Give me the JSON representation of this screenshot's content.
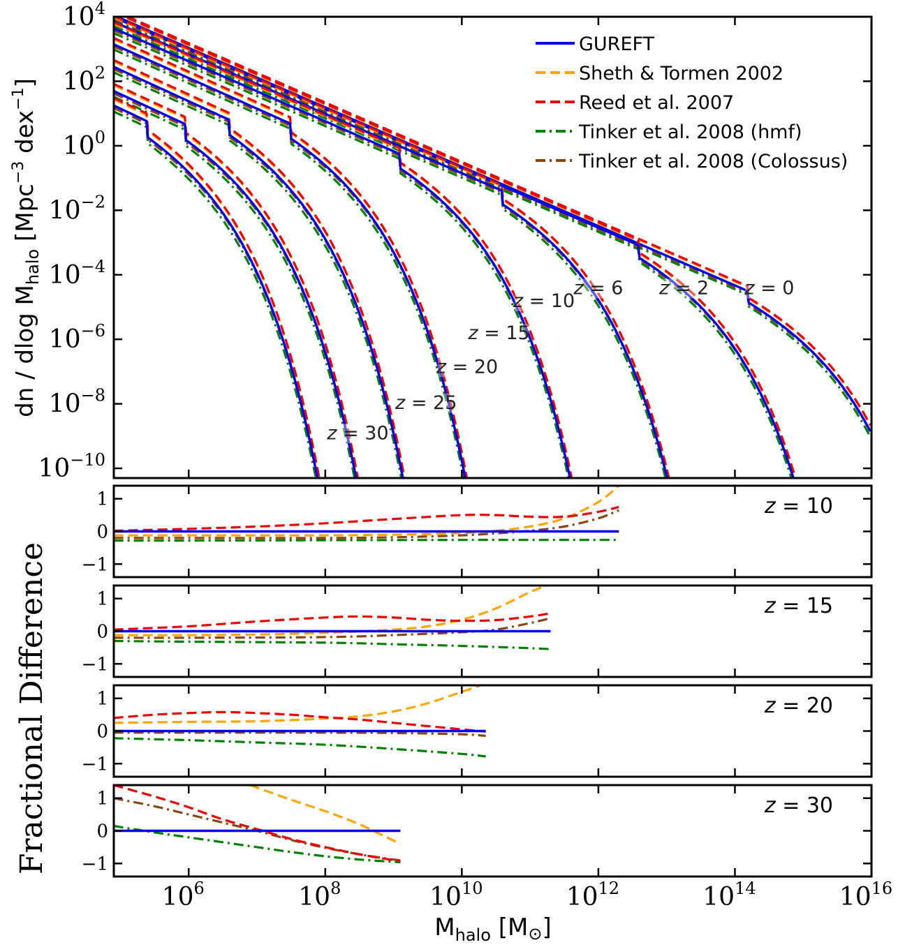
{
  "chart_data": [
    {
      "panel": "main",
      "type": "line",
      "xscale": "log",
      "yscale": "log",
      "xlim": [
        80000,
        1e+16
      ],
      "ylim": [
        5e-11,
        10000
      ],
      "xlabel": "M_halo [M_sun]",
      "xlabel_main": "M",
      "xlabel_sub": "halo",
      "xlabel_unit": "[M",
      "xlabel_unit_sub": "⊙",
      "xlabel_close": "]",
      "ylabel_prefix": "dn / dlog M",
      "ylabel_sub": "halo",
      "ylabel_suffix_a": " [Mpc",
      "ylabel_sup": "−3",
      "ylabel_suffix_b": " dex",
      "ylabel_sup2": "−1",
      "ylabel_close": "]",
      "x_ticks": [
        {
          "base": "10",
          "exp": "6",
          "value": 1000000.0
        },
        {
          "base": "10",
          "exp": "8",
          "value": 100000000.0
        },
        {
          "base": "10",
          "exp": "10",
          "value": 10000000000.0
        },
        {
          "base": "10",
          "exp": "12",
          "value": 1000000000000.0
        },
        {
          "base": "10",
          "exp": "14",
          "value": 100000000000000.0
        },
        {
          "base": "10",
          "exp": "16",
          "value": 1e+16
        }
      ],
      "y_ticks": [
        {
          "base": "10",
          "exp": "4",
          "value": 10000.0
        },
        {
          "base": "10",
          "exp": "2",
          "value": 100.0
        },
        {
          "base": "10",
          "exp": "0",
          "value": 1
        },
        {
          "base": "10",
          "exp": "−2",
          "value": 0.01
        },
        {
          "base": "10",
          "exp": "−4",
          "value": 0.0001
        },
        {
          "base": "10",
          "exp": "−6",
          "value": 1e-06
        },
        {
          "base": "10",
          "exp": "−8",
          "value": 1e-08
        },
        {
          "base": "10",
          "exp": "−10",
          "value": 1e-10
        }
      ],
      "legend": {
        "placement": "top-right",
        "entries": [
          {
            "label": "GUREFT",
            "color": "#0000ee",
            "style": "solid"
          },
          {
            "label": "Sheth & Tormen 2002",
            "color": "#ffa500",
            "style": "dashed"
          },
          {
            "label": "Reed et al. 2007",
            "color": "#ee0000",
            "style": "dashed"
          },
          {
            "label": "Tinker et al. 2008 (hmf)",
            "color": "#008000",
            "style": "dashdot"
          },
          {
            "label": "Tinker et al. 2008 (Colossus)",
            "color": "#8b4513",
            "style": "dashdot"
          }
        ]
      },
      "redshift_curves": [
        {
          "z": 0,
          "label": "z = 0",
          "label_at": [
            320000000000000.0,
            2.5e-05
          ],
          "logn_at_1e5": 3.95,
          "slope": -0.92,
          "log_mcut": 14.2,
          "curv": 1.45,
          "mend": 1e+16
        },
        {
          "z": 2,
          "label": "z = 2",
          "label_at": [
            18000000000000.0,
            2.5e-05
          ],
          "logn_at_1e5": 3.9,
          "slope": -0.92,
          "log_mcut": 12.6,
          "curv": 1.6,
          "mend": 1e+16
        },
        {
          "z": 6,
          "label": "z = 6",
          "label_at": [
            1000000000000.0,
            2.5e-05
          ],
          "logn_at_1e5": 3.75,
          "slope": -0.92,
          "log_mcut": 10.6,
          "curv": 1.75,
          "mend": 1e+16
        },
        {
          "z": 10,
          "label": "z = 10",
          "label_at": [
            160000000000.0,
            1e-05
          ],
          "logn_at_1e5": 3.55,
          "slope": -0.93,
          "log_mcut": 9.1,
          "curv": 1.85,
          "mend": 1e+16
        },
        {
          "z": 15,
          "label": "z = 15",
          "label_at": [
            35000000000.0,
            1e-06
          ],
          "logn_at_1e5": 3.05,
          "slope": -0.95,
          "log_mcut": 7.5,
          "curv": 1.9,
          "mend": 1e+16
        },
        {
          "z": 20,
          "label": "z = 20",
          "label_at": [
            12000000000.0,
            9e-08
          ],
          "logn_at_1e5": 2.35,
          "slope": -0.97,
          "log_mcut": 6.6,
          "curv": 1.95,
          "mend": 1e+16
        },
        {
          "z": 25,
          "label": "z = 25",
          "label_at": [
            3000000000.0,
            7e-09
          ],
          "logn_at_1e5": 1.6,
          "slope": -0.98,
          "log_mcut": 5.95,
          "curv": 2.0,
          "mend": 1e+16
        },
        {
          "z": 30,
          "label": "z = 30",
          "label_at": [
            300000000.0,
            8e-10
          ],
          "logn_at_1e5": 1.15,
          "slope": -1.0,
          "log_mcut": 5.4,
          "curv": 2.05,
          "mend": 1e+16
        }
      ],
      "model_offsets_dex": {
        "GUREFT": 0,
        "Sheth & Tormen 2002": 0.12,
        "Reed et al. 2007": 0.15,
        "Tinker et al. 2008 (hmf)": -0.12,
        "Tinker et al. 2008 (Colossus)": -0.05
      }
    },
    {
      "panel": "frac-z10",
      "type": "line",
      "xscale": "log",
      "xlim": [
        80000,
        1e+16
      ],
      "ylim": [
        -1.4,
        1.4
      ],
      "label": "z = 10",
      "y_ticks": [
        "1",
        "0",
        "−1"
      ],
      "y_tick_values": [
        1,
        0,
        -1
      ],
      "series": [
        {
          "name": "GUREFT",
          "x_log": [
            4.9,
            12.3
          ],
          "y": [
            0,
            0
          ]
        },
        {
          "name": "Sheth & Tormen 2002",
          "x_log": [
            4.9,
            6,
            7,
            8,
            9,
            10,
            10.5,
            11,
            11.5,
            12,
            12.3
          ],
          "y": [
            -0.12,
            -0.12,
            -0.12,
            -0.12,
            -0.1,
            -0.05,
            0.02,
            0.15,
            0.4,
            0.9,
            1.4
          ]
        },
        {
          "name": "Reed et al. 2007",
          "x_log": [
            4.9,
            6,
            7,
            8,
            9,
            10,
            10.5,
            11,
            11.5,
            12,
            12.3
          ],
          "y": [
            0.02,
            0.08,
            0.15,
            0.25,
            0.38,
            0.5,
            0.5,
            0.45,
            0.45,
            0.6,
            0.75
          ]
        },
        {
          "name": "Tinker et al. 2008 (hmf)",
          "x_log": [
            4.9,
            6,
            8,
            10,
            11,
            12,
            12.3
          ],
          "y": [
            -0.28,
            -0.28,
            -0.27,
            -0.26,
            -0.26,
            -0.26,
            -0.26
          ]
        },
        {
          "name": "Tinker et al. 2008 (Colossus)",
          "x_log": [
            4.9,
            6,
            8,
            9,
            10,
            10.5,
            11,
            11.5,
            12,
            12.3
          ],
          "y": [
            -0.2,
            -0.2,
            -0.2,
            -0.18,
            -0.12,
            -0.06,
            0.02,
            0.15,
            0.4,
            0.65
          ]
        }
      ]
    },
    {
      "panel": "frac-z15",
      "type": "line",
      "xscale": "log",
      "xlim": [
        80000,
        1e+16
      ],
      "ylim": [
        -1.4,
        1.4
      ],
      "label": "z = 15",
      "y_ticks": [
        "1",
        "0",
        "−1"
      ],
      "y_tick_values": [
        1,
        0,
        -1
      ],
      "series": [
        {
          "name": "GUREFT",
          "x_log": [
            4.9,
            11.3
          ],
          "y": [
            0,
            0
          ]
        },
        {
          "name": "Sheth & Tormen 2002",
          "x_log": [
            4.9,
            6,
            7,
            8,
            9,
            9.5,
            10,
            10.5,
            11,
            11.3
          ],
          "y": [
            -0.12,
            -0.12,
            -0.1,
            -0.05,
            0.05,
            0.15,
            0.35,
            0.7,
            1.2,
            1.45
          ]
        },
        {
          "name": "Reed et al. 2007",
          "x_log": [
            4.9,
            6,
            7,
            8,
            8.5,
            9,
            9.5,
            10,
            10.5,
            11,
            11.3
          ],
          "y": [
            0.05,
            0.15,
            0.3,
            0.42,
            0.45,
            0.42,
            0.35,
            0.32,
            0.34,
            0.45,
            0.55
          ]
        },
        {
          "name": "Tinker et al. 2008 (hmf)",
          "x_log": [
            4.9,
            6,
            8,
            9,
            10,
            11,
            11.3
          ],
          "y": [
            -0.3,
            -0.32,
            -0.35,
            -0.4,
            -0.45,
            -0.52,
            -0.55
          ]
        },
        {
          "name": "Tinker et al. 2008 (Colossus)",
          "x_log": [
            4.9,
            6,
            8,
            9,
            10,
            10.5,
            11,
            11.3
          ],
          "y": [
            -0.2,
            -0.2,
            -0.18,
            -0.12,
            -0.03,
            0.05,
            0.25,
            0.4
          ]
        }
      ]
    },
    {
      "panel": "frac-z20",
      "type": "line",
      "xscale": "log",
      "xlim": [
        80000,
        1e+16
      ],
      "ylim": [
        -1.4,
        1.4
      ],
      "label": "z = 20",
      "y_ticks": [
        "1",
        "0",
        "−1"
      ],
      "y_tick_values": [
        1,
        0,
        -1
      ],
      "series": [
        {
          "name": "GUREFT",
          "x_log": [
            4.9,
            10.35
          ],
          "y": [
            0,
            0
          ]
        },
        {
          "name": "Sheth & Tormen 2002",
          "x_log": [
            4.9,
            6,
            7,
            8,
            8.5,
            9,
            9.5,
            10,
            10.35
          ],
          "y": [
            0.25,
            0.28,
            0.3,
            0.38,
            0.45,
            0.6,
            0.85,
            1.2,
            1.45
          ]
        },
        {
          "name": "Reed et al. 2007",
          "x_log": [
            4.9,
            5.5,
            6,
            6.5,
            7,
            7.5,
            8,
            8.5,
            9,
            9.5,
            10,
            10.35
          ],
          "y": [
            0.4,
            0.5,
            0.55,
            0.58,
            0.55,
            0.5,
            0.42,
            0.35,
            0.25,
            0.15,
            0.05,
            -0.02
          ]
        },
        {
          "name": "Tinker et al. 2008 (hmf)",
          "x_log": [
            4.9,
            6,
            7,
            8,
            9,
            10,
            10.35
          ],
          "y": [
            -0.22,
            -0.28,
            -0.35,
            -0.42,
            -0.55,
            -0.7,
            -0.78
          ]
        },
        {
          "name": "Tinker et al. 2008 (Colossus)",
          "x_log": [
            4.9,
            6,
            7,
            8,
            9,
            10,
            10.35
          ],
          "y": [
            -0.05,
            -0.05,
            -0.05,
            -0.05,
            -0.06,
            -0.1,
            -0.15
          ]
        }
      ]
    },
    {
      "panel": "frac-z30",
      "type": "line",
      "xscale": "log",
      "xlim": [
        80000,
        1e+16
      ],
      "ylim": [
        -1.4,
        1.4
      ],
      "label": "z = 30",
      "y_ticks": [
        "1",
        "0",
        "−1"
      ],
      "y_tick_values": [
        1,
        0,
        -1
      ],
      "series": [
        {
          "name": "GUREFT",
          "x_log": [
            4.9,
            9.1
          ],
          "y": [
            0,
            0
          ]
        },
        {
          "name": "Sheth & Tormen 2002",
          "x_log": [
            6.9,
            7.5,
            8,
            8.5,
            9,
            9.1
          ],
          "y": [
            1.4,
            0.95,
            0.6,
            0.2,
            -0.3,
            -0.4
          ]
        },
        {
          "name": "Reed et al. 2007",
          "x_log": [
            4.9,
            5.5,
            6,
            6.5,
            7,
            7.5,
            8,
            8.5,
            9,
            9.1
          ],
          "y": [
            1.4,
            1.05,
            0.72,
            0.35,
            0.05,
            -0.25,
            -0.5,
            -0.72,
            -0.9,
            -0.92
          ]
        },
        {
          "name": "Tinker et al. 2008 (hmf)",
          "x_log": [
            4.9,
            5.5,
            6,
            6.5,
            7,
            7.5,
            8,
            8.5,
            9,
            9.1
          ],
          "y": [
            0.15,
            -0.05,
            -0.2,
            -0.35,
            -0.5,
            -0.65,
            -0.78,
            -0.88,
            -0.95,
            -0.96
          ]
        },
        {
          "name": "Tinker et al. 2008 (Colossus)",
          "x_log": [
            4.9,
            5.5,
            6,
            6.5,
            7,
            7.5,
            8,
            8.5,
            9,
            9.1
          ],
          "y": [
            1.0,
            0.75,
            0.5,
            0.25,
            0.0,
            -0.28,
            -0.52,
            -0.72,
            -0.88,
            -0.9
          ]
        }
      ]
    }
  ],
  "shared": {
    "frac_ylabel": "Fractional Difference"
  }
}
